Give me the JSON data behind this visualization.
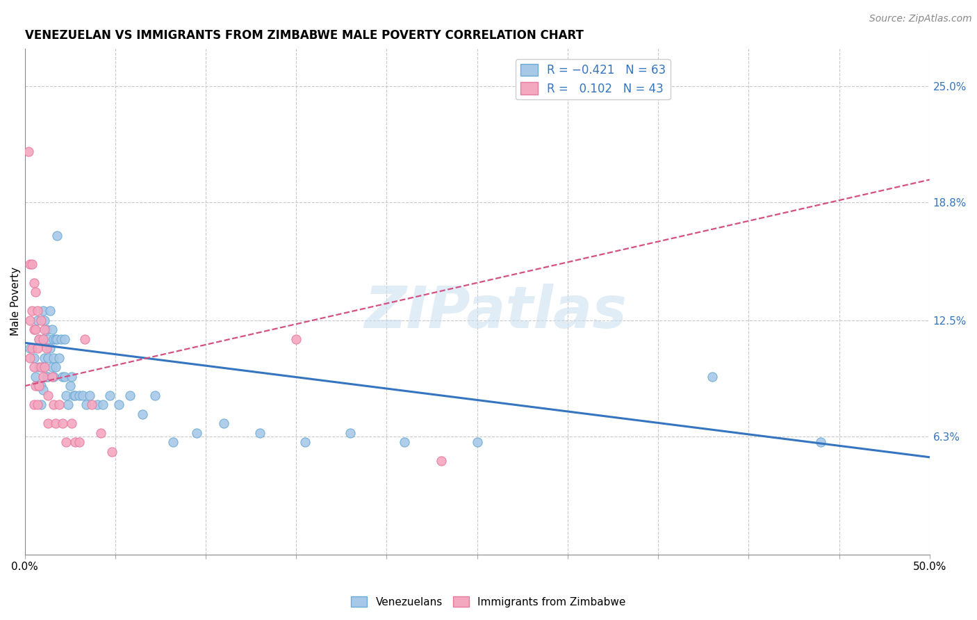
{
  "title": "VENEZUELAN VS IMMIGRANTS FROM ZIMBABWE MALE POVERTY CORRELATION CHART",
  "source": "Source: ZipAtlas.com",
  "ylabel": "Male Poverty",
  "right_ytick_vals": [
    0.063,
    0.125,
    0.188,
    0.25
  ],
  "right_ytick_labels": [
    "6.3%",
    "12.5%",
    "18.8%",
    "25.0%"
  ],
  "xmin": 0.0,
  "xmax": 0.5,
  "ymin": 0.0,
  "ymax": 0.27,
  "watermark": "ZIPatlas",
  "blue_color": "#a8c8e8",
  "pink_color": "#f4a8c0",
  "blue_scatter_edge": "#6aaad4",
  "pink_scatter_edge": "#e87aa0",
  "blue_line_color": "#3575c0",
  "pink_line_color": "#d45080",
  "grid_color": "#c8c8c8",
  "blue_line_y0": 0.113,
  "blue_line_y1": 0.052,
  "pink_line_y0": 0.09,
  "pink_line_y1": 0.2,
  "venezuelan_x": [
    0.003,
    0.005,
    0.006,
    0.007,
    0.007,
    0.008,
    0.008,
    0.009,
    0.009,
    0.01,
    0.01,
    0.01,
    0.01,
    0.011,
    0.011,
    0.012,
    0.012,
    0.013,
    0.013,
    0.013,
    0.014,
    0.014,
    0.015,
    0.015,
    0.016,
    0.016,
    0.016,
    0.017,
    0.017,
    0.018,
    0.018,
    0.019,
    0.02,
    0.021,
    0.022,
    0.022,
    0.023,
    0.024,
    0.025,
    0.026,
    0.027,
    0.028,
    0.03,
    0.032,
    0.034,
    0.036,
    0.04,
    0.043,
    0.047,
    0.052,
    0.058,
    0.065,
    0.072,
    0.082,
    0.095,
    0.11,
    0.13,
    0.155,
    0.18,
    0.21,
    0.25,
    0.38,
    0.44
  ],
  "venezuelan_y": [
    0.11,
    0.105,
    0.095,
    0.09,
    0.125,
    0.115,
    0.1,
    0.09,
    0.08,
    0.13,
    0.115,
    0.1,
    0.088,
    0.125,
    0.105,
    0.12,
    0.095,
    0.115,
    0.105,
    0.095,
    0.13,
    0.11,
    0.12,
    0.1,
    0.115,
    0.105,
    0.095,
    0.115,
    0.1,
    0.17,
    0.115,
    0.105,
    0.115,
    0.095,
    0.115,
    0.095,
    0.085,
    0.08,
    0.09,
    0.095,
    0.085,
    0.085,
    0.085,
    0.085,
    0.08,
    0.085,
    0.08,
    0.08,
    0.085,
    0.08,
    0.085,
    0.075,
    0.085,
    0.06,
    0.065,
    0.07,
    0.065,
    0.06,
    0.065,
    0.06,
    0.06,
    0.095,
    0.06
  ],
  "zimbabwe_x": [
    0.002,
    0.003,
    0.003,
    0.003,
    0.004,
    0.004,
    0.004,
    0.005,
    0.005,
    0.005,
    0.005,
    0.006,
    0.006,
    0.006,
    0.007,
    0.007,
    0.007,
    0.008,
    0.008,
    0.009,
    0.009,
    0.01,
    0.01,
    0.011,
    0.011,
    0.012,
    0.013,
    0.013,
    0.015,
    0.016,
    0.017,
    0.019,
    0.021,
    0.023,
    0.026,
    0.028,
    0.03,
    0.033,
    0.037,
    0.042,
    0.048,
    0.15,
    0.23
  ],
  "zimbabwe_y": [
    0.215,
    0.155,
    0.125,
    0.105,
    0.155,
    0.13,
    0.11,
    0.145,
    0.12,
    0.1,
    0.08,
    0.14,
    0.12,
    0.09,
    0.13,
    0.11,
    0.08,
    0.115,
    0.09,
    0.125,
    0.1,
    0.115,
    0.095,
    0.12,
    0.1,
    0.11,
    0.085,
    0.07,
    0.095,
    0.08,
    0.07,
    0.08,
    0.07,
    0.06,
    0.07,
    0.06,
    0.06,
    0.115,
    0.08,
    0.065,
    0.055,
    0.115,
    0.05
  ]
}
